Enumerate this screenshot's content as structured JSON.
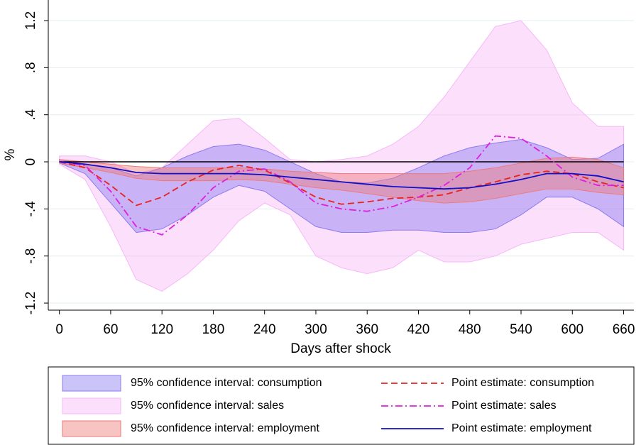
{
  "chart_data": {
    "type": "line",
    "x_label": "Days after shock",
    "y_label": "%",
    "x": [
      0,
      30,
      60,
      90,
      120,
      150,
      180,
      210,
      240,
      270,
      300,
      330,
      360,
      390,
      420,
      450,
      480,
      510,
      540,
      570,
      600,
      630,
      660
    ],
    "xlim": [
      -13,
      672
    ],
    "ylim": [
      -1.26,
      1.375
    ],
    "xticks": [
      0,
      60,
      120,
      180,
      240,
      300,
      360,
      420,
      480,
      540,
      600,
      660
    ],
    "yticks": [
      {
        "value": -1.2,
        "label": "-1.2"
      },
      {
        "value": -0.8,
        "label": "-.8"
      },
      {
        "value": -0.4,
        "label": "-.4"
      },
      0,
      {
        "value": 0.4,
        "label": ".4"
      },
      {
        "value": 0.8,
        "label": ".8"
      },
      1.2
    ],
    "grid": true,
    "reference_line": 0,
    "bands": [
      {
        "name": "95% confidence interval: consumption",
        "color": "#8c7cf0",
        "upper": [
          0.02,
          -0.02,
          -0.05,
          -0.12,
          -0.05,
          0.05,
          0.13,
          0.15,
          0.1,
          0.0,
          -0.1,
          -0.17,
          -0.18,
          -0.14,
          -0.05,
          0.05,
          0.12,
          0.16,
          0.19,
          0.12,
          0.02,
          0.03,
          0.15
        ],
        "lower": [
          -0.01,
          -0.1,
          -0.35,
          -0.6,
          -0.57,
          -0.45,
          -0.3,
          -0.2,
          -0.25,
          -0.4,
          -0.55,
          -0.6,
          -0.6,
          -0.58,
          -0.58,
          -0.6,
          -0.6,
          -0.57,
          -0.45,
          -0.3,
          -0.3,
          -0.4,
          -0.55
        ]
      },
      {
        "name": "95% confidence interval: sales",
        "color": "#f7b8f7",
        "upper": [
          0.05,
          0.05,
          0.0,
          -0.1,
          -0.05,
          0.15,
          0.35,
          0.37,
          0.2,
          0.02,
          0.0,
          0.02,
          0.05,
          0.15,
          0.3,
          0.55,
          0.85,
          1.15,
          1.2,
          0.95,
          0.5,
          0.3,
          0.3
        ],
        "lower": [
          -0.02,
          -0.15,
          -0.55,
          -1.0,
          -1.1,
          -0.95,
          -0.75,
          -0.5,
          -0.35,
          -0.45,
          -0.8,
          -0.9,
          -0.95,
          -0.9,
          -0.75,
          -0.85,
          -0.85,
          -0.8,
          -0.7,
          -0.65,
          -0.6,
          -0.6,
          -0.75
        ]
      },
      {
        "name": "95% confidence interval: employment",
        "color": "#ee7a7a",
        "upper": [
          0.02,
          0.0,
          -0.02,
          -0.04,
          -0.05,
          -0.05,
          -0.05,
          -0.05,
          -0.06,
          -0.08,
          -0.09,
          -0.1,
          -0.1,
          -0.1,
          -0.1,
          -0.1,
          -0.08,
          -0.05,
          -0.01,
          0.03,
          0.04,
          0.02,
          -0.05
        ],
        "lower": [
          -0.01,
          -0.05,
          -0.09,
          -0.14,
          -0.16,
          -0.16,
          -0.16,
          -0.15,
          -0.16,
          -0.19,
          -0.22,
          -0.24,
          -0.27,
          -0.3,
          -0.33,
          -0.35,
          -0.34,
          -0.31,
          -0.27,
          -0.23,
          -0.23,
          -0.26,
          -0.28
        ]
      }
    ],
    "series": [
      {
        "name": "Point estimate: consumption",
        "color": "#e8231f",
        "dash": "9 5",
        "values": [
          0,
          -0.05,
          -0.2,
          -0.37,
          -0.3,
          -0.17,
          -0.07,
          -0.03,
          -0.07,
          -0.18,
          -0.3,
          -0.36,
          -0.34,
          -0.31,
          -0.3,
          -0.28,
          -0.22,
          -0.17,
          -0.11,
          -0.08,
          -0.1,
          -0.17,
          -0.22
        ]
      },
      {
        "name": "Point estimate: sales",
        "color": "#e01ee0",
        "dash": "10 4 2 4",
        "values": [
          0,
          -0.03,
          -0.25,
          -0.55,
          -0.62,
          -0.45,
          -0.22,
          -0.08,
          -0.06,
          -0.17,
          -0.35,
          -0.4,
          -0.42,
          -0.38,
          -0.3,
          -0.2,
          -0.05,
          0.22,
          0.2,
          0.05,
          -0.13,
          -0.2,
          -0.2
        ]
      },
      {
        "name": "Point estimate: employment",
        "color": "#1010c8",
        "dash": "none",
        "values": [
          0,
          -0.02,
          -0.05,
          -0.09,
          -0.1,
          -0.1,
          -0.1,
          -0.1,
          -0.11,
          -0.13,
          -0.15,
          -0.17,
          -0.19,
          -0.21,
          -0.22,
          -0.23,
          -0.22,
          -0.19,
          -0.15,
          -0.1,
          -0.1,
          -0.12,
          -0.17
        ]
      }
    ]
  }
}
